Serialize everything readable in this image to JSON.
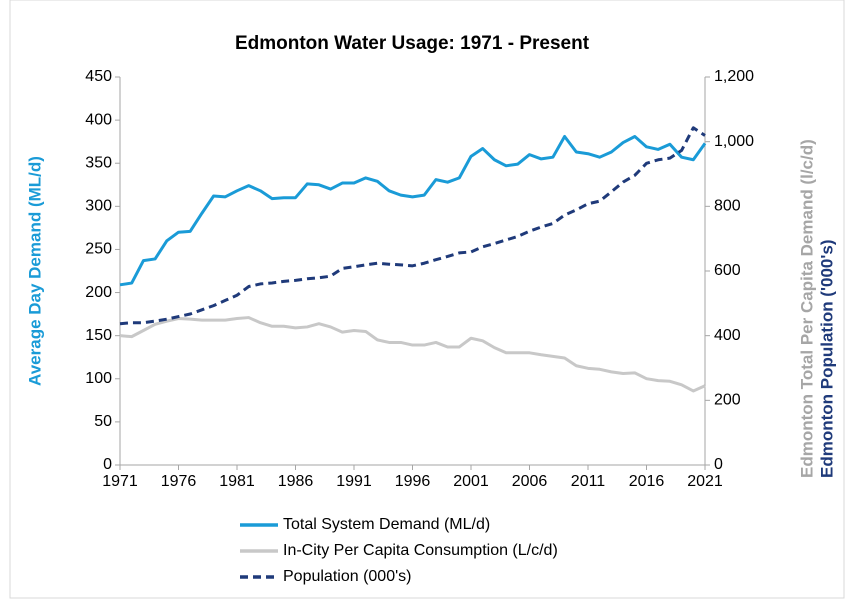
{
  "chart_data": {
    "type": "line",
    "title": "Edmonton Water Usage: 1971 - Present",
    "y_label": "Average Day Demand (ML/d)",
    "y2_labels": [
      "Edmonton Total Per Capita Demand (l/c/d)",
      "Edmonton Population ('000's)"
    ],
    "y2_label_colors": [
      "#a6a6a6",
      "#1f3a7a"
    ],
    "y_label_color": "#1a9bd7",
    "x": [
      1971,
      1972,
      1973,
      1974,
      1975,
      1976,
      1977,
      1978,
      1979,
      1980,
      1981,
      1982,
      1983,
      1984,
      1985,
      1986,
      1987,
      1988,
      1989,
      1990,
      1991,
      1992,
      1993,
      1994,
      1995,
      1996,
      1997,
      1998,
      1999,
      2000,
      2001,
      2002,
      2003,
      2004,
      2005,
      2006,
      2007,
      2008,
      2009,
      2010,
      2011,
      2012,
      2013,
      2014,
      2015,
      2016,
      2017,
      2018,
      2019,
      2020,
      2021
    ],
    "xlim": [
      1971,
      2021
    ],
    "xticks": [
      1971,
      1976,
      1981,
      1986,
      1991,
      1996,
      2001,
      2006,
      2011,
      2016,
      2021
    ],
    "ylim": [
      0,
      450
    ],
    "yticks": [
      0,
      50,
      100,
      150,
      200,
      250,
      300,
      350,
      400,
      450
    ],
    "y2lim": [
      0,
      1200
    ],
    "y2ticks": [
      0,
      200,
      400,
      600,
      800,
      {
        "value": 1000,
        "label": "1,000"
      },
      {
        "value": 1200,
        "label": "1,200"
      }
    ],
    "grid": false,
    "legend": "bottom",
    "series": [
      {
        "name": "Total System Demand (ML/d)",
        "color": "#1a9bd7",
        "dash": "solid",
        "values": [
          209,
          211,
          237,
          239,
          260,
          270,
          271,
          292,
          312,
          311,
          318,
          324,
          318,
          309,
          310,
          310,
          326,
          325,
          320,
          327,
          327,
          333,
          329,
          318,
          313,
          311,
          313,
          331,
          328,
          333,
          358,
          367,
          354,
          347,
          349,
          360,
          355,
          357,
          381,
          363,
          361,
          357,
          363,
          374,
          381,
          369,
          366,
          372,
          357,
          354,
          373
        ]
      },
      {
        "name": "In-City Per Capita Consumption (L/c/d)",
        "color": "#c8c8c8",
        "dash": "solid",
        "axis": "y2",
        "values": [
          400,
          397,
          416,
          435,
          445,
          453,
          451,
          448,
          448,
          448,
          453,
          456,
          440,
          429,
          429,
          424,
          427,
          437,
          427,
          411,
          416,
          413,
          387,
          379,
          379,
          371,
          371,
          379,
          365,
          365,
          392,
          384,
          363,
          347,
          347,
          347,
          341,
          336,
          331,
          307,
          299,
          296,
          288,
          283,
          285,
          267,
          261,
          259,
          248,
          229,
          245
        ]
      },
      {
        "name": "Population (000's)",
        "color": "#1f3a7a",
        "dash": "dashed",
        "axis": "y2",
        "values": [
          437,
          440,
          440,
          445,
          451,
          459,
          467,
          480,
          493,
          509,
          525,
          552,
          560,
          563,
          568,
          571,
          576,
          579,
          584,
          608,
          613,
          619,
          624,
          621,
          619,
          616,
          624,
          635,
          645,
          656,
          659,
          675,
          685,
          696,
          707,
          723,
          736,
          747,
          773,
          789,
          808,
          816,
          845,
          875,
          896,
          933,
          944,
          949,
          973,
          1043,
          1019
        ]
      }
    ]
  }
}
